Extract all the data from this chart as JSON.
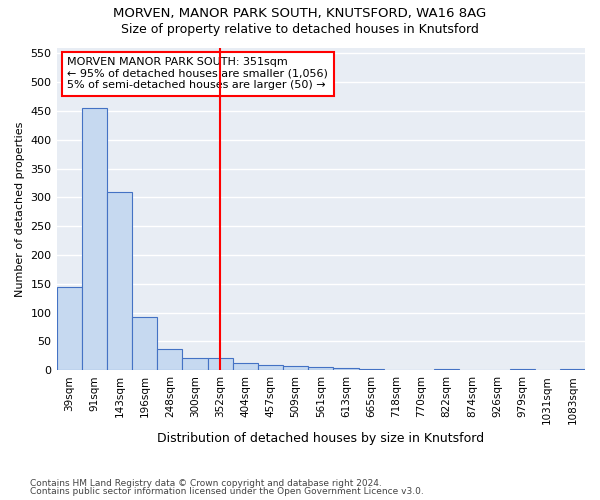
{
  "title1": "MORVEN, MANOR PARK SOUTH, KNUTSFORD, WA16 8AG",
  "title2": "Size of property relative to detached houses in Knutsford",
  "xlabel": "Distribution of detached houses by size in Knutsford",
  "ylabel": "Number of detached properties",
  "footnote1": "Contains HM Land Registry data © Crown copyright and database right 2024.",
  "footnote2": "Contains public sector information licensed under the Open Government Licence v3.0.",
  "categories": [
    "39sqm",
    "91sqm",
    "143sqm",
    "196sqm",
    "248sqm",
    "300sqm",
    "352sqm",
    "404sqm",
    "457sqm",
    "509sqm",
    "561sqm",
    "613sqm",
    "665sqm",
    "718sqm",
    "770sqm",
    "822sqm",
    "874sqm",
    "926sqm",
    "979sqm",
    "1031sqm",
    "1083sqm"
  ],
  "values": [
    145,
    455,
    310,
    93,
    37,
    22,
    22,
    13,
    9,
    8,
    5,
    3,
    2,
    1,
    1,
    2,
    1,
    1,
    2,
    1,
    2
  ],
  "bar_color": "#c6d9f0",
  "bar_edge_color": "#4472c4",
  "background_color": "#e8edf4",
  "grid_color": "#ffffff",
  "red_line_x": 6,
  "annotation_text": "MORVEN MANOR PARK SOUTH: 351sqm\n← 95% of detached houses are smaller (1,056)\n5% of semi-detached houses are larger (50) →",
  "ylim_max": 560,
  "yticks": [
    0,
    50,
    100,
    150,
    200,
    250,
    300,
    350,
    400,
    450,
    500,
    550
  ]
}
